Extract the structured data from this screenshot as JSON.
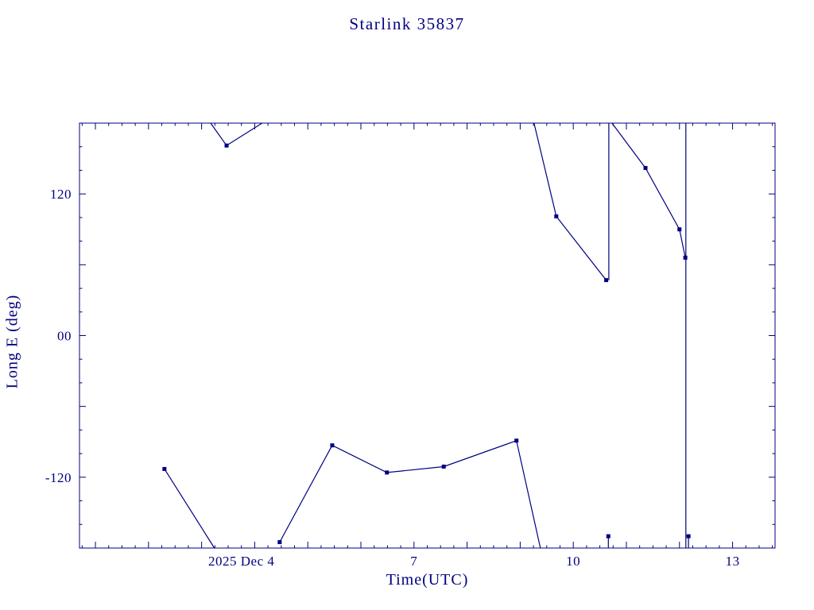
{
  "page": {
    "background": "#ffffff",
    "accent_color": "#000080"
  },
  "chart_data": {
    "type": "line",
    "title": "Starlink 35837",
    "xlabel": "Time(UTC)",
    "ylabel": "Long E (deg)",
    "x_unit": "day of December 2025 (UTC)",
    "xlim": [
      0.7,
      13.8
    ],
    "ylim": [
      -180,
      180
    ],
    "grid": false,
    "legend": "none",
    "line_color": "#000080",
    "marker": "filled-square",
    "xticks": {
      "major_every": 1,
      "minor_every": 0.25,
      "labeled": [
        {
          "v": 4,
          "label": "2025 Dec  4"
        },
        {
          "v": 7,
          "label": "7"
        },
        {
          "v": 10,
          "label": "10"
        },
        {
          "v": 13,
          "label": "13"
        }
      ]
    },
    "yticks": {
      "major_every": 60,
      "minor_every": 20,
      "labeled": [
        {
          "v": 120,
          "label": "120"
        },
        {
          "v": 0,
          "label": "00"
        },
        {
          "v": -120,
          "label": "-120"
        }
      ]
    },
    "segments": [
      [
        [
          2.3,
          -113
        ],
        [
          3.24,
          -180
        ]
      ],
      [
        [
          3.17,
          180
        ],
        [
          3.47,
          161
        ],
        [
          4.14,
          180
        ]
      ],
      [
        [
          4.47,
          -175
        ],
        [
          5.46,
          -93
        ],
        [
          6.49,
          -116
        ],
        [
          7.56,
          -111
        ],
        [
          8.93,
          -89
        ],
        [
          9.38,
          -180
        ]
      ],
      [
        [
          9.26,
          180
        ],
        [
          9.68,
          101
        ],
        [
          10.62,
          47
        ]
      ],
      [
        [
          10.67,
          180
        ],
        [
          10.67,
          47
        ]
      ],
      [
        [
          10.66,
          -170
        ],
        [
          10.66,
          -180
        ]
      ],
      [
        [
          10.73,
          180
        ],
        [
          11.36,
          142
        ],
        [
          12.0,
          90
        ],
        [
          12.11,
          66
        ]
      ],
      [
        [
          12.12,
          180
        ],
        [
          12.12,
          -180
        ]
      ],
      [
        [
          12.17,
          -170
        ],
        [
          12.17,
          -180
        ]
      ]
    ],
    "markers": [
      [
        2.3,
        -113
      ],
      [
        3.47,
        161
      ],
      [
        4.47,
        -175
      ],
      [
        5.46,
        -93
      ],
      [
        6.49,
        -116
      ],
      [
        7.56,
        -111
      ],
      [
        8.93,
        -89
      ],
      [
        9.68,
        101
      ],
      [
        10.62,
        47
      ],
      [
        10.66,
        -170
      ],
      [
        11.36,
        142
      ],
      [
        12.0,
        90
      ],
      [
        12.11,
        66
      ],
      [
        12.17,
        -170
      ]
    ]
  }
}
